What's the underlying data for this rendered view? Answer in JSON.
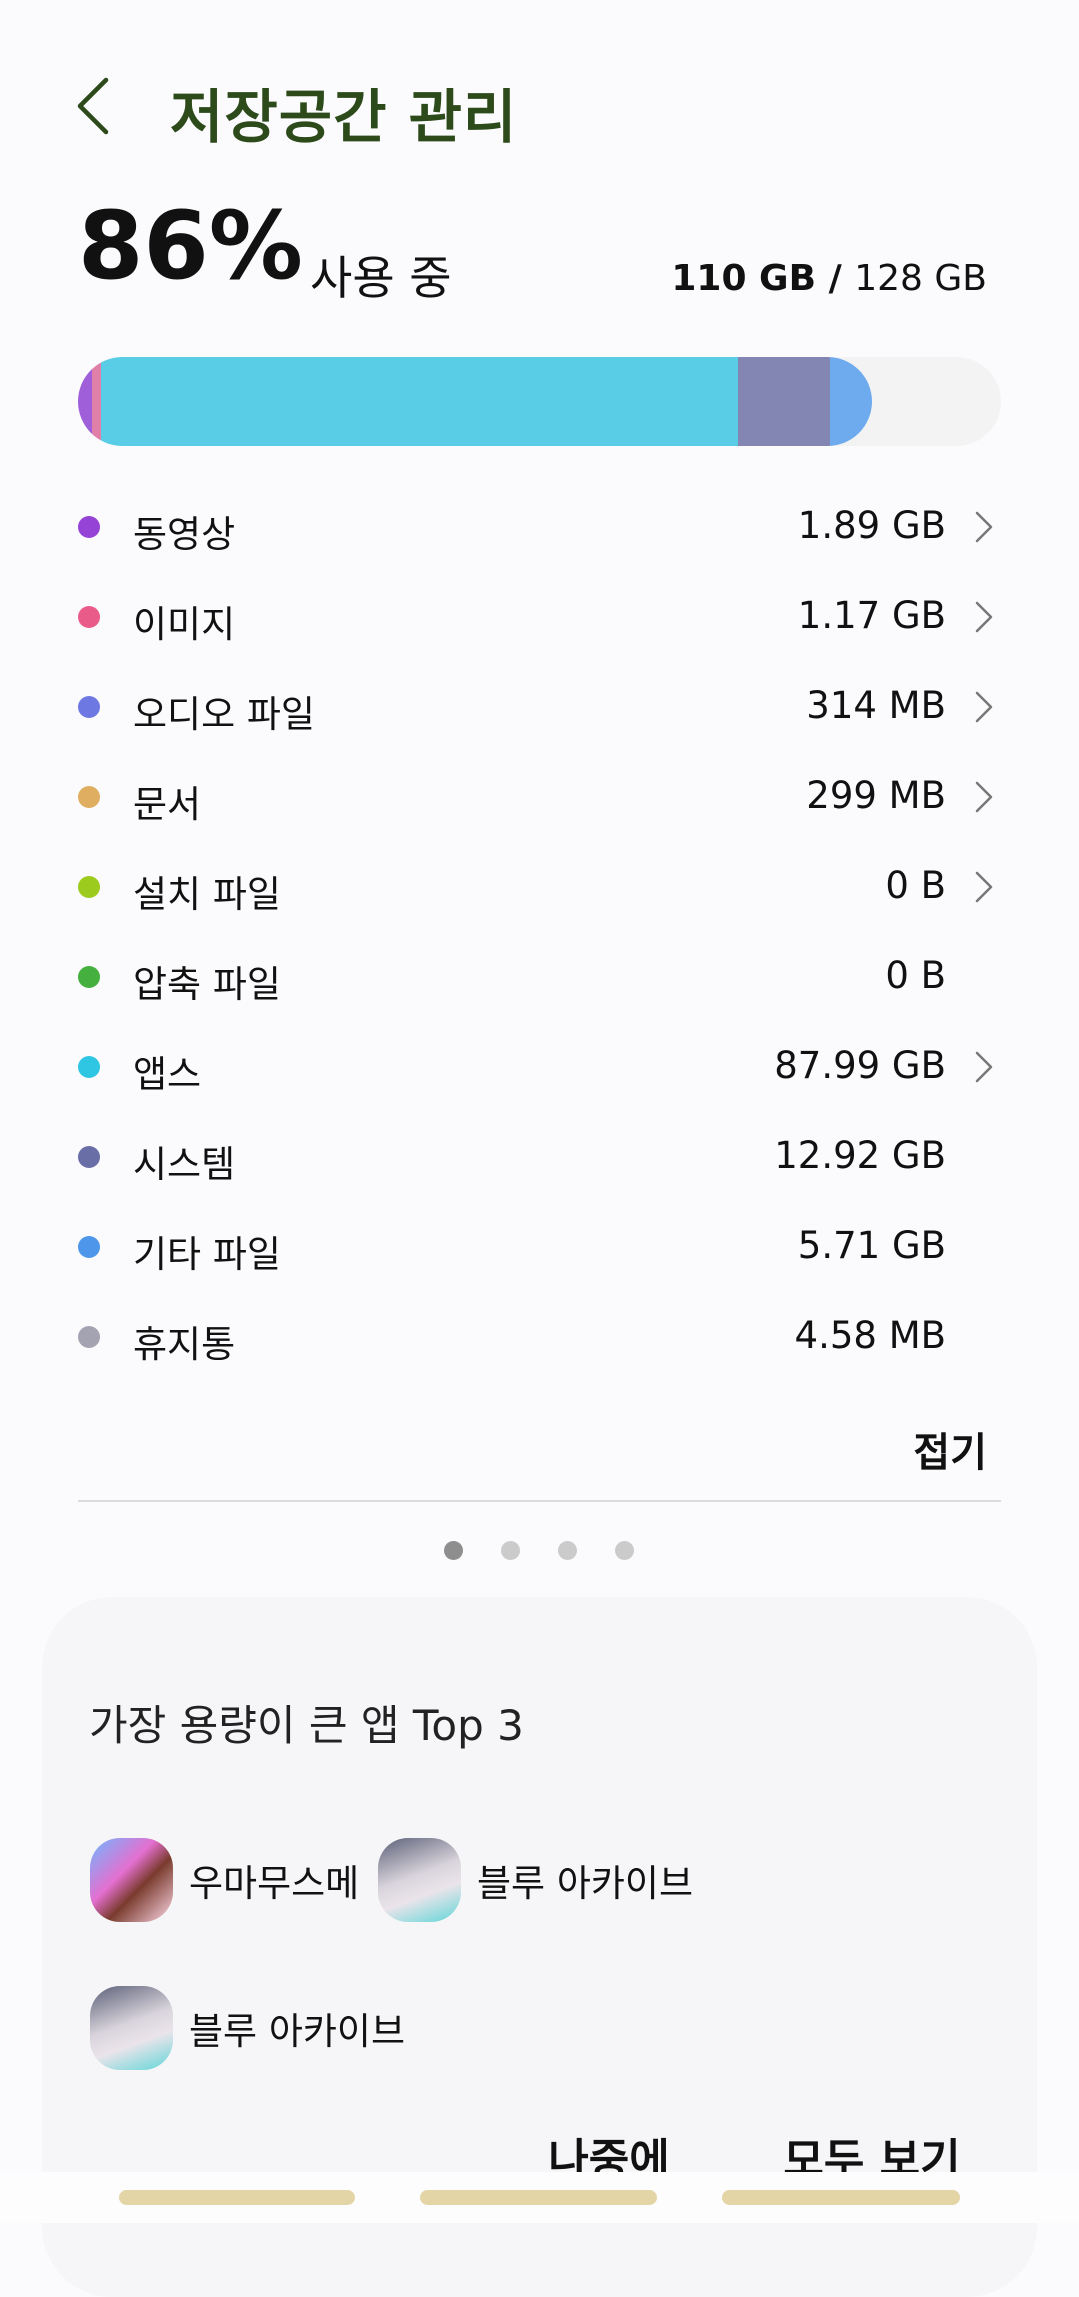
{
  "header": {
    "title": "저장공간 관리",
    "back_icon": "chevron-left-icon"
  },
  "summary": {
    "percent": "86%",
    "in_use_label": "사용 중",
    "used": "110 GB",
    "separator": " / ",
    "total": "128 GB"
  },
  "storage_bar": {
    "segments": [
      {
        "category": "동영상",
        "color": "#9e5fd9",
        "percent": 1.5
      },
      {
        "category": "이미지",
        "color": "#e07fa8",
        "percent": 1.0
      },
      {
        "category": "앱스",
        "color": "#59cde6",
        "percent": 69
      },
      {
        "category": "시스템",
        "color": "#8385b2",
        "percent": 10
      },
      {
        "category": "기타 파일",
        "color": "#6eaaee",
        "percent": 4.5
      }
    ],
    "empty_color": "#f3f3f3"
  },
  "categories": [
    {
      "label": "동영상",
      "value": "1.89 GB",
      "color": "#9543d6",
      "chevron": true
    },
    {
      "label": "이미지",
      "value": "1.17 GB",
      "color": "#e95b88",
      "chevron": true
    },
    {
      "label": "오디오 파일",
      "value": "314 MB",
      "color": "#6e78e2",
      "chevron": true
    },
    {
      "label": "문서",
      "value": "299 MB",
      "color": "#e0ae60",
      "chevron": true
    },
    {
      "label": "설치 파일",
      "value": "0 B",
      "color": "#9ccb1e",
      "chevron": true
    },
    {
      "label": "압축 파일",
      "value": "0 B",
      "color": "#45b03e",
      "chevron": false
    },
    {
      "label": "앱스",
      "value": "87.99 GB",
      "color": "#2ec6e2",
      "chevron": true
    },
    {
      "label": "시스템",
      "value": "12.92 GB",
      "color": "#6a6ea6",
      "chevron": false
    },
    {
      "label": "기타 파일",
      "value": "5.71 GB",
      "color": "#4e96ea",
      "chevron": false
    },
    {
      "label": "휴지통",
      "value": "4.58 MB",
      "color": "#a4a3b2",
      "chevron": false
    }
  ],
  "collapse_label": "접기",
  "pager": {
    "count": 4,
    "active": 0
  },
  "top_apps": {
    "title": "가장 용량이 큰 앱 Top 3",
    "apps": [
      {
        "name": "우마무스메",
        "icon": "umamusume-app-icon"
      },
      {
        "name": "블루 아카이브",
        "icon": "blue-archive-app-icon"
      },
      {
        "name": "블루 아카이브",
        "icon": "blue-archive-app-icon"
      }
    ],
    "later_label": "나중에",
    "view_all_label": "모두 보기"
  }
}
